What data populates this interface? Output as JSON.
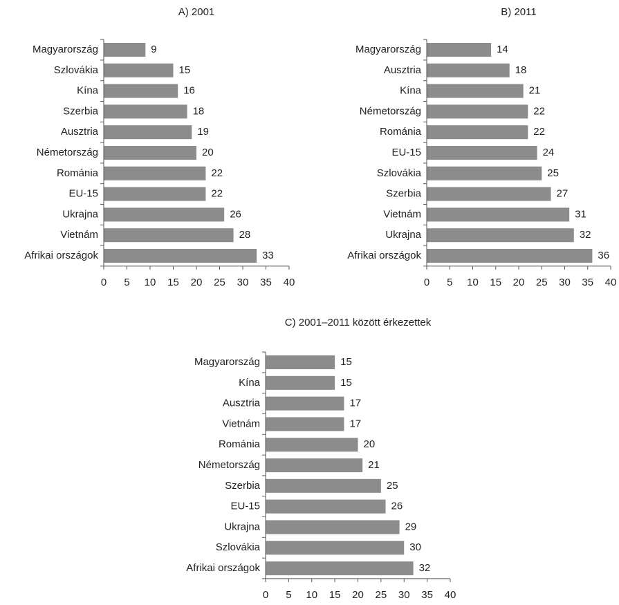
{
  "chart_data": [
    {
      "type": "barh",
      "title": "A) 2001",
      "categories": [
        "Magyarország",
        "Szlovákia",
        "Kína",
        "Szerbia",
        "Ausztria",
        "Németország",
        "Románia",
        "EU-15",
        "Ukrajna",
        "Vietnám",
        "Afrikai országok"
      ],
      "values": [
        9,
        15,
        16,
        18,
        19,
        20,
        22,
        22,
        26,
        28,
        33
      ],
      "color": "#8c8c8c",
      "xlim": [
        0,
        40
      ],
      "xticks": [
        0,
        5,
        10,
        15,
        20,
        25,
        30,
        35,
        40
      ]
    },
    {
      "type": "barh",
      "title": "B) 2011",
      "categories": [
        "Magyarország",
        "Ausztria",
        "Kína",
        "Németország",
        "Románia",
        "EU-15",
        "Szlovákia",
        "Szerbia",
        "Vietnám",
        "Ukrajna",
        "Afrikai országok"
      ],
      "values": [
        14,
        18,
        21,
        22,
        22,
        24,
        25,
        27,
        31,
        32,
        36
      ],
      "color": "#8c8c8c",
      "xlim": [
        0,
        40
      ],
      "xticks": [
        0,
        5,
        10,
        15,
        20,
        25,
        30,
        35,
        40
      ]
    },
    {
      "type": "barh",
      "title": "C) 2001–2011 között érkezettek",
      "categories": [
        "Magyarország",
        "Kína",
        "Ausztria",
        "Vietnám",
        "Románia",
        "Németország",
        "Szerbia",
        "EU-15",
        "Ukrajna",
        "Szlovákia",
        "Afrikai országok"
      ],
      "values": [
        15,
        15,
        17,
        17,
        20,
        21,
        25,
        26,
        29,
        30,
        32
      ],
      "color": "#8c8c8c",
      "xlim": [
        0,
        40
      ],
      "xticks": [
        0,
        5,
        10,
        15,
        20,
        25,
        30,
        35,
        40
      ]
    }
  ]
}
